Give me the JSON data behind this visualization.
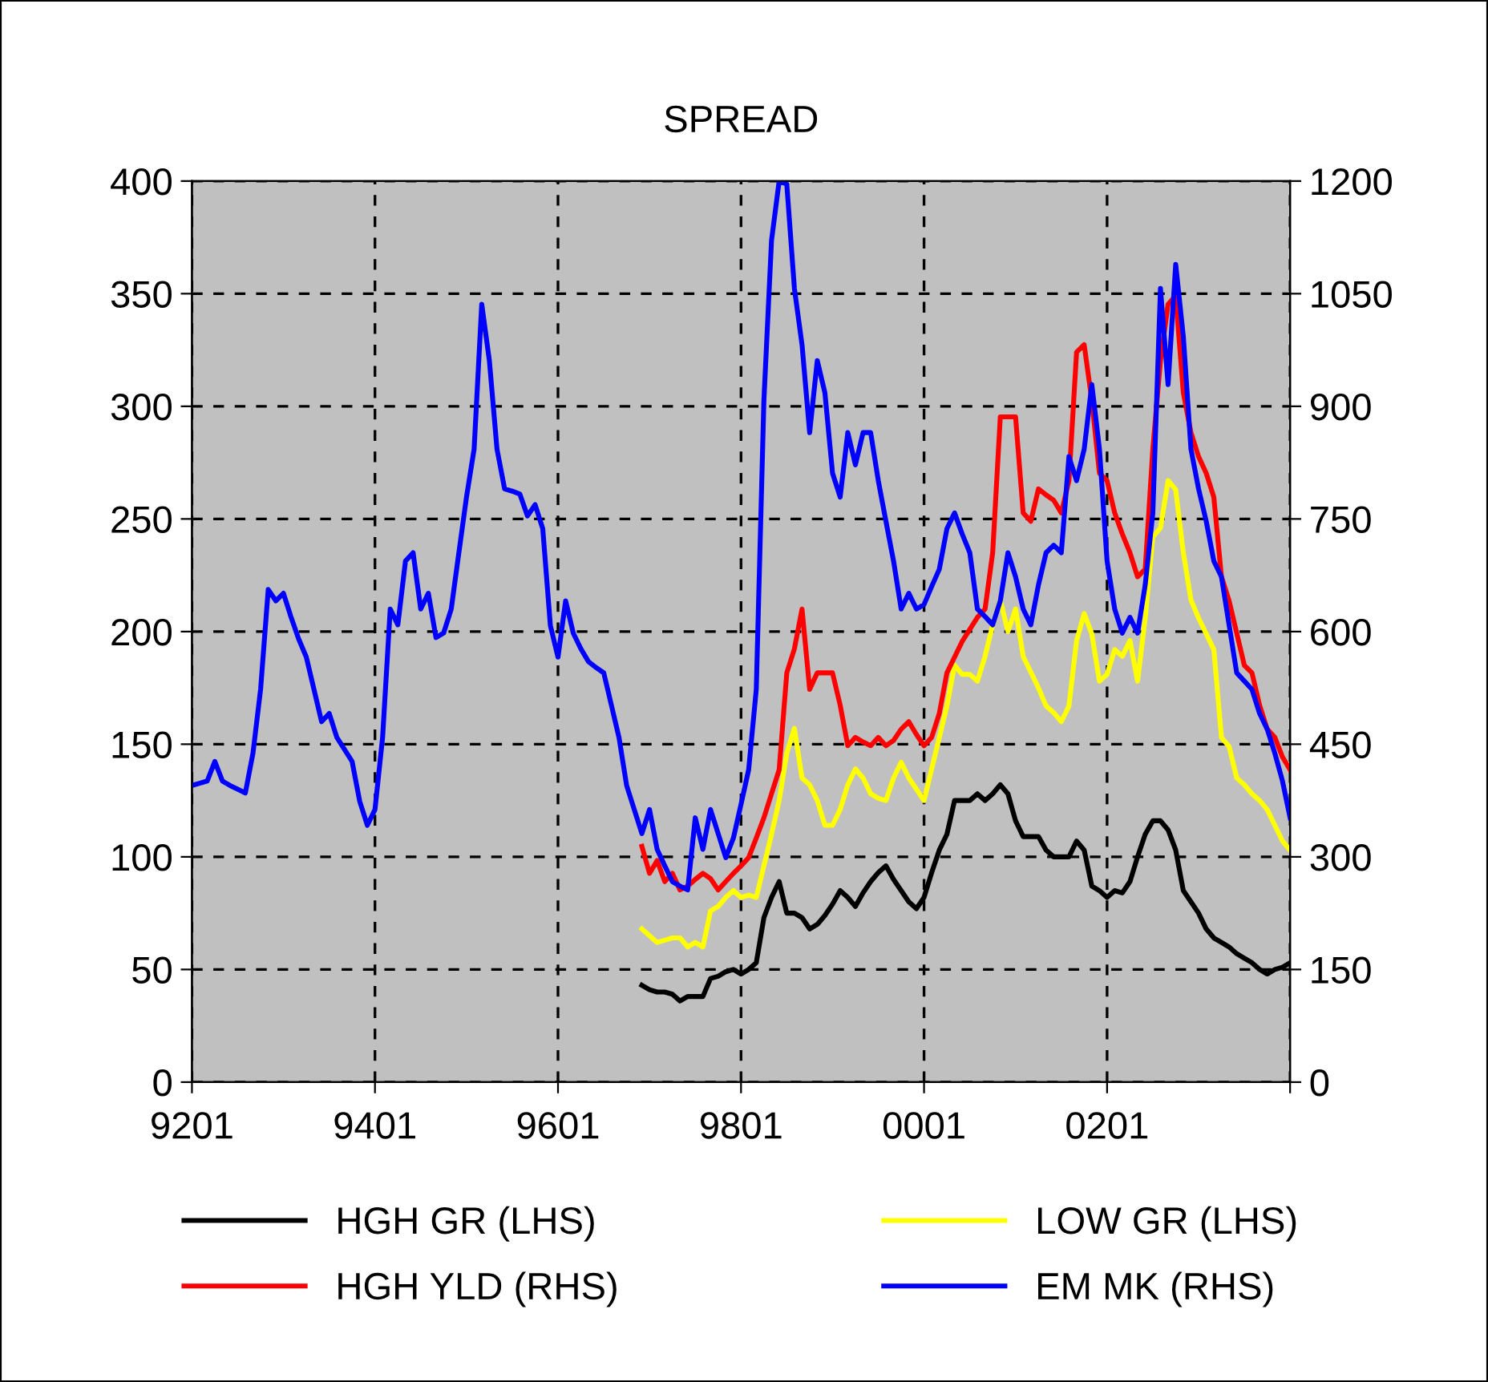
{
  "chart_data": {
    "type": "line",
    "title": "SPREAD",
    "categories": [
      "9201",
      null,
      null,
      null,
      null,
      null,
      null,
      null,
      null,
      null,
      null,
      null,
      null,
      null,
      null,
      null,
      null,
      null,
      null,
      null,
      null,
      null,
      null,
      null,
      "9401",
      null,
      null,
      null,
      null,
      null,
      null,
      null,
      null,
      null,
      null,
      null,
      null,
      null,
      null,
      null,
      null,
      null,
      null,
      null,
      null,
      null,
      null,
      null,
      "9601",
      null,
      null,
      null,
      null,
      null,
      null,
      null,
      null,
      null,
      null,
      null,
      null,
      null,
      null,
      null,
      null,
      null,
      null,
      null,
      null,
      null,
      null,
      null,
      "9801",
      null,
      null,
      null,
      null,
      null,
      null,
      null,
      null,
      null,
      null,
      null,
      null,
      null,
      null,
      null,
      null,
      null,
      null,
      null,
      null,
      null,
      null,
      null,
      "0001",
      null,
      null,
      null,
      null,
      null,
      null,
      null,
      null,
      null,
      null,
      null,
      null,
      null,
      null,
      null,
      null,
      null,
      null,
      null,
      null,
      null,
      null,
      null,
      "0201",
      null,
      null,
      null,
      null,
      null,
      null,
      null,
      null,
      null,
      null,
      null,
      null,
      null,
      null,
      null,
      null,
      null,
      null,
      null,
      null,
      null,
      null,
      null,
      null
    ],
    "ylim": [
      0,
      400
    ],
    "yticks": [
      0,
      50,
      100,
      150,
      200,
      250,
      300,
      350,
      400
    ],
    "y2lim": [
      0,
      1200
    ],
    "y2ticks": [
      0,
      150,
      300,
      450,
      600,
      750,
      900,
      1050,
      1200
    ],
    "grid": true,
    "legend": "bottom",
    "series": [
      {
        "name": "HGH GR (LHS)",
        "color": "#000000",
        "axis": "y",
        "values": [
          null,
          null,
          null,
          null,
          null,
          null,
          null,
          null,
          null,
          null,
          null,
          null,
          null,
          null,
          null,
          null,
          null,
          null,
          null,
          null,
          null,
          null,
          null,
          null,
          null,
          null,
          null,
          null,
          null,
          null,
          null,
          null,
          null,
          null,
          null,
          null,
          null,
          null,
          null,
          null,
          null,
          null,
          null,
          null,
          null,
          null,
          null,
          null,
          null,
          null,
          null,
          null,
          null,
          null,
          null,
          null,
          null,
          null,
          null,
          43,
          41,
          40,
          40,
          39,
          36,
          38,
          38,
          38,
          46,
          47,
          49,
          50,
          48,
          50,
          53,
          73,
          82,
          89,
          75,
          75,
          73,
          68,
          70,
          74,
          79,
          85,
          82,
          78,
          84,
          89,
          93,
          96,
          90,
          85,
          80,
          77,
          82,
          93,
          103,
          110,
          125,
          125,
          125,
          128,
          125,
          128,
          132,
          128,
          116,
          109,
          109,
          109,
          103,
          100,
          100,
          100,
          107,
          103,
          87,
          85,
          82,
          85,
          84,
          89,
          100,
          110,
          116,
          116,
          112,
          103,
          85,
          80,
          75,
          68,
          64,
          62,
          60,
          57,
          55,
          53,
          50,
          48,
          50,
          51,
          53
        ]
      },
      {
        "name": "LOW GR (LHS)",
        "color": "#ffff00",
        "axis": "y",
        "values": [
          null,
          null,
          null,
          null,
          null,
          null,
          null,
          null,
          null,
          null,
          null,
          null,
          null,
          null,
          null,
          null,
          null,
          null,
          null,
          null,
          null,
          null,
          null,
          null,
          null,
          null,
          null,
          null,
          null,
          null,
          null,
          null,
          null,
          null,
          null,
          null,
          null,
          null,
          null,
          null,
          null,
          null,
          null,
          null,
          null,
          null,
          null,
          null,
          null,
          null,
          null,
          null,
          null,
          null,
          null,
          null,
          null,
          null,
          null,
          68,
          65,
          62,
          63,
          64,
          64,
          60,
          62,
          60,
          76,
          78,
          82,
          85,
          82,
          83,
          82,
          96,
          110,
          125,
          146,
          157,
          135,
          132,
          125,
          114,
          114,
          121,
          132,
          139,
          135,
          128,
          126,
          125,
          135,
          142,
          135,
          130,
          125,
          139,
          153,
          167,
          185,
          181,
          181,
          178,
          189,
          203,
          214,
          200,
          210,
          189,
          182,
          175,
          167,
          164,
          160,
          167,
          196,
          208,
          199,
          178,
          181,
          192,
          189,
          196,
          178,
          206,
          242,
          246,
          267,
          263,
          235,
          214,
          206,
          199,
          192,
          153,
          149,
          135,
          132,
          128,
          125,
          121,
          114,
          107,
          103
        ]
      },
      {
        "name": "HGH YLD (RHS)",
        "color": "#ff0000",
        "axis": "y2",
        "values": [
          null,
          null,
          null,
          null,
          null,
          null,
          null,
          null,
          null,
          null,
          null,
          null,
          null,
          null,
          null,
          null,
          null,
          null,
          null,
          null,
          null,
          null,
          null,
          null,
          null,
          null,
          null,
          null,
          null,
          null,
          null,
          null,
          null,
          null,
          null,
          null,
          null,
          null,
          null,
          null,
          null,
          null,
          null,
          null,
          null,
          null,
          null,
          null,
          null,
          null,
          null,
          null,
          null,
          null,
          null,
          null,
          null,
          null,
          null,
          314,
          278,
          295,
          267,
          278,
          256,
          261,
          270,
          278,
          271,
          256,
          267,
          278,
          288,
          299,
          325,
          352,
          384,
          416,
          545,
          577,
          630,
          523,
          545,
          545,
          545,
          502,
          448,
          459,
          453,
          448,
          459,
          448,
          455,
          470,
          480,
          463,
          448,
          459,
          491,
          545,
          566,
          587,
          603,
          619,
          630,
          705,
          886,
          886,
          886,
          758,
          747,
          790,
          782,
          775,
          758,
          801,
          972,
          982,
          908,
          811,
          801,
          758,
          730,
          705,
          673,
          683,
          843,
          961,
          1036,
          1047,
          918,
          865,
          833,
          811,
          779,
          673,
          641,
          598,
          555,
          545,
          502,
          470,
          459,
          433,
          416
        ]
      },
      {
        "name": "EM MK (RHS)",
        "color": "#0000ff",
        "axis": "y2",
        "values": [
          395,
          398,
          401,
          427,
          401,
          395,
          390,
          385,
          438,
          523,
          656,
          641,
          651,
          619,
          590,
          566,
          523,
          480,
          491,
          459,
          443,
          427,
          374,
          342,
          363,
          459,
          630,
          609,
          694,
          705,
          630,
          651,
          592,
          598,
          630,
          705,
          779,
          843,
          1036,
          961,
          843,
          790,
          787,
          783,
          754,
          769,
          737,
          608,
          566,
          641,
          598,
          577,
          560,
          552,
          545,
          502,
          459,
          395,
          363,
          331,
          363,
          310,
          288,
          267,
          261,
          256,
          352,
          310,
          363,
          331,
          299,
          325,
          370,
          416,
          523,
          908,
          1121,
          1200,
          1196,
          1057,
          982,
          865,
          961,
          918,
          811,
          779,
          865,
          822,
          865,
          865,
          801,
          747,
          694,
          630,
          651,
          630,
          636,
          660,
          683,
          737,
          758,
          730,
          705,
          630,
          620,
          609,
          641,
          705,
          673,
          630,
          609,
          662,
          705,
          715,
          705,
          833,
          801,
          843,
          929,
          843,
          694,
          630,
          598,
          619,
          598,
          662,
          758,
          1057,
          929,
          1089,
          993,
          843,
          790,
          747,
          694,
          673,
          609,
          545,
          534,
          523,
          491,
          470,
          438,
          401,
          352
        ]
      }
    ]
  }
}
